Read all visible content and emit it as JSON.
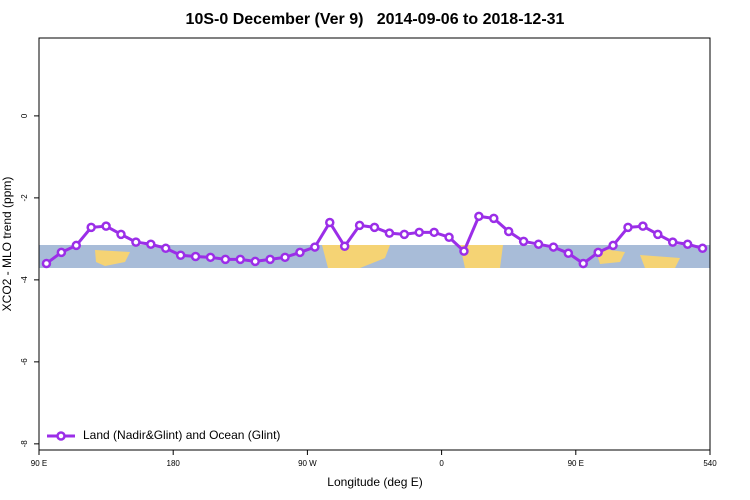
{
  "chart_data": {
    "type": "line",
    "title": "10S-0 December (Ver 9)   2014-09-06 to 2018-12-31",
    "x_label": "Longitude (deg E)",
    "y_label": "XCO2 - MLO trend (ppm)",
    "x": [
      95,
      105,
      115,
      125,
      135,
      145,
      155,
      165,
      175,
      185,
      195,
      205,
      215,
      225,
      235,
      245,
      255,
      265,
      275,
      285,
      295,
      305,
      315,
      325,
      335,
      345,
      355,
      365,
      375,
      385,
      395,
      405,
      415,
      425,
      435,
      445,
      455,
      465,
      475,
      485,
      495,
      505,
      515,
      525,
      535
    ],
    "series": [
      {
        "name": "Land (Nadir&Glint) and Ocean (Glint)",
        "color": "#9b2ee8",
        "values": [
          -3.6,
          -3.33,
          -3.16,
          -2.72,
          -2.69,
          -2.89,
          -3.08,
          -3.13,
          -3.23,
          -3.4,
          -3.43,
          -3.45,
          -3.5,
          -3.5,
          -3.55,
          -3.5,
          -3.45,
          -3.33,
          -3.2,
          -2.6,
          -3.18,
          -2.67,
          -2.72,
          -2.86,
          -2.89,
          -2.84,
          -2.84,
          -2.96,
          -3.3,
          -2.45,
          -2.5,
          -2.82,
          -3.06,
          -3.13,
          -3.2,
          -3.35,
          -3.6,
          -3.33,
          -3.16,
          -2.72,
          -2.69,
          -2.89,
          -3.08,
          -3.13,
          -3.23
        ]
      }
    ],
    "xlim": [
      90,
      540
    ],
    "xticks": [
      {
        "value": 90,
        "label": "90 E"
      },
      180,
      {
        "value": 270,
        "label": "90 W"
      },
      {
        "value": 360,
        "label": "0"
      },
      {
        "value": 450,
        "label": "90 E"
      },
      540
    ],
    "ylim": [
      -8.15,
      1.9
    ],
    "yticks": [
      0,
      -2,
      -4,
      -6,
      -8
    ],
    "legend": "bottom-left"
  }
}
